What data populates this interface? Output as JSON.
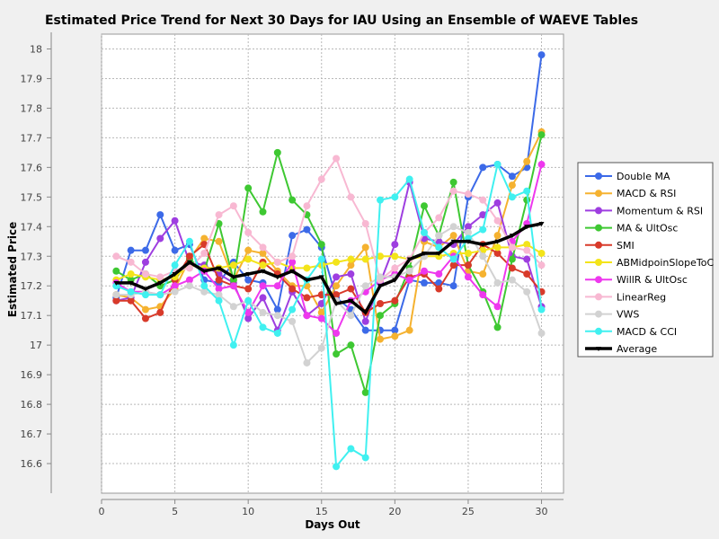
{
  "chart_data": {
    "type": "line",
    "title": "Estimated Price Trend for Next 30 Days for IAU Using an Ensemble of WAEVE Tables",
    "xlabel": "Days Out",
    "ylabel": "Estimated Price",
    "xlim": [
      0,
      31.5
    ],
    "ylim": [
      16.5,
      18.05
    ],
    "xticks": [
      0,
      5,
      10,
      15,
      20,
      25,
      30
    ],
    "yticks": [
      16.6,
      16.7,
      16.8,
      16.9,
      17,
      17.1,
      17.2,
      17.3,
      17.4,
      17.5,
      17.6,
      17.7,
      17.8,
      17.9,
      18
    ],
    "grid": true,
    "legend_position": "right",
    "x": [
      1,
      2,
      3,
      4,
      5,
      6,
      7,
      8,
      9,
      10,
      11,
      12,
      13,
      14,
      15,
      16,
      17,
      18,
      19,
      20,
      21,
      22,
      23,
      24,
      25,
      26,
      27,
      28,
      29,
      30
    ],
    "series": [
      {
        "name": "Double MA",
        "color": "#3c6ae8",
        "values": [
          17.16,
          17.32,
          17.32,
          17.44,
          17.32,
          17.34,
          17.22,
          17.21,
          17.28,
          17.22,
          17.21,
          17.12,
          17.37,
          17.39,
          17.33,
          17.16,
          17.12,
          17.05,
          17.05,
          17.05,
          17.22,
          17.21,
          17.21,
          17.2,
          17.5,
          17.6,
          17.61,
          17.57,
          17.6,
          17.98
        ]
      },
      {
        "name": "MACD & RSI",
        "color": "#f5b230",
        "values": [
          17.17,
          17.16,
          17.12,
          17.13,
          17.19,
          17.29,
          17.36,
          17.35,
          17.22,
          17.32,
          17.31,
          17.25,
          17.2,
          17.2,
          17.11,
          17.2,
          17.27,
          17.33,
          17.02,
          17.03,
          17.05,
          17.35,
          17.33,
          17.37,
          17.25,
          17.24,
          17.37,
          17.54,
          17.62,
          17.72
        ]
      },
      {
        "name": "Momentum & RSI",
        "color": "#9e3ee0",
        "values": [
          17.15,
          17.16,
          17.28,
          17.36,
          17.42,
          17.28,
          17.27,
          17.24,
          17.21,
          17.09,
          17.16,
          17.05,
          17.18,
          17.1,
          17.14,
          17.23,
          17.24,
          17.08,
          17.21,
          17.34,
          17.55,
          17.36,
          17.35,
          17.34,
          17.4,
          17.44,
          17.48,
          17.3,
          17.29,
          17.13
        ]
      },
      {
        "name": "MA & UltOsc",
        "color": "#3ec832",
        "values": [
          17.25,
          17.22,
          17.24,
          17.2,
          17.22,
          17.29,
          17.25,
          17.41,
          17.22,
          17.53,
          17.45,
          17.65,
          17.49,
          17.44,
          17.34,
          16.97,
          17.0,
          16.84,
          17.1,
          17.14,
          17.26,
          17.47,
          17.37,
          17.55,
          17.27,
          17.18,
          17.06,
          17.29,
          17.49,
          17.71
        ]
      },
      {
        "name": "SMI",
        "color": "#d83a2a",
        "values": [
          17.15,
          17.15,
          17.09,
          17.11,
          17.22,
          17.3,
          17.34,
          17.22,
          17.2,
          17.19,
          17.28,
          17.24,
          17.19,
          17.16,
          17.17,
          17.17,
          17.19,
          17.11,
          17.14,
          17.15,
          17.23,
          17.24,
          17.19,
          17.27,
          17.27,
          17.34,
          17.31,
          17.26,
          17.24,
          17.18
        ]
      },
      {
        "name": "ABMidpoinSlopeToC",
        "color": "#f3e41a",
        "values": [
          17.22,
          17.24,
          17.23,
          17.22,
          17.23,
          17.27,
          17.26,
          17.26,
          17.27,
          17.29,
          17.27,
          17.28,
          17.26,
          17.26,
          17.27,
          17.28,
          17.29,
          17.29,
          17.3,
          17.3,
          17.29,
          17.3,
          17.3,
          17.31,
          17.31,
          17.32,
          17.33,
          17.33,
          17.34,
          17.31
        ]
      },
      {
        "name": "WillR & UltOsc",
        "color": "#ee38ee",
        "values": [
          17.21,
          17.18,
          17.18,
          17.17,
          17.2,
          17.22,
          17.25,
          17.19,
          17.2,
          17.11,
          17.2,
          17.2,
          17.28,
          17.1,
          17.09,
          17.04,
          17.15,
          17.18,
          17.22,
          17.24,
          17.22,
          17.25,
          17.24,
          17.3,
          17.23,
          17.17,
          17.13,
          17.35,
          17.41,
          17.61
        ]
      },
      {
        "name": "LinearReg",
        "color": "#f8b8d2",
        "values": [
          17.3,
          17.28,
          17.24,
          17.23,
          17.25,
          17.26,
          17.31,
          17.44,
          17.47,
          17.38,
          17.33,
          17.28,
          17.3,
          17.47,
          17.56,
          17.63,
          17.5,
          17.41,
          17.22,
          17.26,
          17.29,
          17.38,
          17.43,
          17.52,
          17.51,
          17.49,
          17.42,
          17.33,
          17.32,
          17.27
        ]
      },
      {
        "name": "VWS",
        "color": "#d2d2d2",
        "values": [
          17.17,
          17.17,
          17.18,
          17.17,
          17.18,
          17.2,
          17.18,
          17.17,
          17.13,
          17.15,
          17.11,
          17.1,
          17.08,
          16.94,
          16.99,
          17.15,
          17.1,
          17.2,
          17.23,
          17.23,
          17.25,
          17.3,
          17.37,
          17.4,
          17.38,
          17.3,
          17.21,
          17.22,
          17.18,
          17.04
        ]
      },
      {
        "name": "MACD & CCI",
        "color": "#40f0f0",
        "values": [
          17.2,
          17.18,
          17.17,
          17.17,
          17.27,
          17.35,
          17.2,
          17.15,
          17.0,
          17.15,
          17.06,
          17.04,
          17.12,
          17.22,
          17.29,
          16.59,
          16.65,
          16.62,
          17.49,
          17.5,
          17.56,
          17.38,
          17.33,
          17.29,
          17.36,
          17.39,
          17.61,
          17.5,
          17.52,
          17.12
        ]
      },
      {
        "name": "Average",
        "color": "#000000",
        "values": [
          17.21,
          17.21,
          17.19,
          17.21,
          17.24,
          17.28,
          17.25,
          17.26,
          17.23,
          17.24,
          17.25,
          17.23,
          17.25,
          17.22,
          17.23,
          17.14,
          17.15,
          17.11,
          17.2,
          17.22,
          17.29,
          17.31,
          17.31,
          17.35,
          17.35,
          17.34,
          17.35,
          17.37,
          17.4,
          17.41
        ]
      }
    ]
  }
}
